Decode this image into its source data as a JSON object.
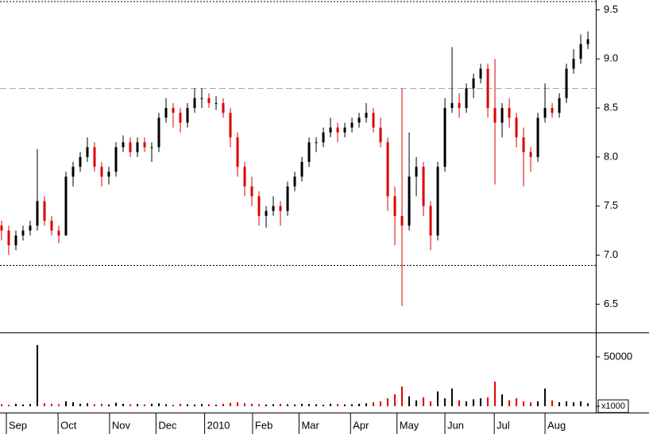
{
  "chart_data": {
    "type": "candlestick",
    "up_color": "#000000",
    "down_color": "#dd0000",
    "ohlc": [
      [
        7.3,
        7.35,
        7.15,
        7.25
      ],
      [
        7.25,
        7.3,
        7.0,
        7.1
      ],
      [
        7.1,
        7.25,
        7.05,
        7.2
      ],
      [
        7.2,
        7.3,
        7.15,
        7.25
      ],
      [
        7.25,
        7.35,
        7.2,
        7.3
      ],
      [
        7.3,
        8.08,
        7.25,
        7.55
      ],
      [
        7.55,
        7.6,
        7.3,
        7.35
      ],
      [
        7.35,
        7.4,
        7.2,
        7.25
      ],
      [
        7.25,
        7.3,
        7.12,
        7.2
      ],
      [
        7.2,
        7.85,
        7.2,
        7.8
      ],
      [
        7.8,
        7.95,
        7.7,
        7.9
      ],
      [
        7.9,
        8.05,
        7.85,
        8.0
      ],
      [
        8.0,
        8.2,
        7.95,
        8.1
      ],
      [
        8.1,
        8.15,
        7.85,
        7.9
      ],
      [
        7.9,
        7.95,
        7.7,
        7.8
      ],
      [
        7.8,
        7.9,
        7.72,
        7.85
      ],
      [
        7.85,
        8.15,
        7.8,
        8.1
      ],
      [
        8.1,
        8.22,
        8.05,
        8.15
      ],
      [
        8.15,
        8.2,
        8.0,
        8.05
      ],
      [
        8.05,
        8.2,
        8.0,
        8.15
      ],
      [
        8.15,
        8.2,
        8.05,
        8.1
      ],
      [
        8.1,
        8.15,
        7.95,
        8.1
      ],
      [
        8.1,
        8.45,
        8.05,
        8.4
      ],
      [
        8.4,
        8.6,
        8.35,
        8.5
      ],
      [
        8.5,
        8.55,
        8.3,
        8.45
      ],
      [
        8.45,
        8.5,
        8.25,
        8.35
      ],
      [
        8.35,
        8.55,
        8.3,
        8.5
      ],
      [
        8.5,
        8.7,
        8.45,
        8.6
      ],
      [
        8.6,
        8.7,
        8.5,
        8.6
      ],
      [
        8.6,
        8.65,
        8.5,
        8.55
      ],
      [
        8.55,
        8.62,
        8.48,
        8.55
      ],
      [
        8.55,
        8.6,
        8.4,
        8.45
      ],
      [
        8.45,
        8.5,
        8.1,
        8.2
      ],
      [
        8.2,
        8.25,
        7.8,
        7.9
      ],
      [
        7.9,
        7.95,
        7.6,
        7.7
      ],
      [
        7.7,
        7.8,
        7.5,
        7.6
      ],
      [
        7.6,
        7.65,
        7.3,
        7.4
      ],
      [
        7.4,
        7.5,
        7.28,
        7.45
      ],
      [
        7.45,
        7.6,
        7.4,
        7.5
      ],
      [
        7.5,
        7.55,
        7.3,
        7.45
      ],
      [
        7.45,
        7.75,
        7.4,
        7.7
      ],
      [
        7.7,
        7.85,
        7.65,
        7.8
      ],
      [
        7.8,
        8.0,
        7.75,
        7.95
      ],
      [
        7.95,
        8.2,
        7.9,
        8.15
      ],
      [
        8.15,
        8.2,
        8.05,
        8.15
      ],
      [
        8.15,
        8.3,
        8.1,
        8.25
      ],
      [
        8.25,
        8.4,
        8.2,
        8.3
      ],
      [
        8.3,
        8.35,
        8.15,
        8.25
      ],
      [
        8.25,
        8.35,
        8.2,
        8.3
      ],
      [
        8.3,
        8.4,
        8.25,
        8.35
      ],
      [
        8.35,
        8.45,
        8.3,
        8.4
      ],
      [
        8.4,
        8.55,
        8.35,
        8.45
      ],
      [
        8.45,
        8.5,
        8.25,
        8.3
      ],
      [
        8.3,
        8.4,
        8.1,
        8.15
      ],
      [
        8.15,
        8.2,
        7.45,
        7.6
      ],
      [
        7.6,
        7.7,
        7.1,
        7.4
      ],
      [
        7.4,
        8.7,
        6.48,
        7.3
      ],
      [
        7.3,
        8.25,
        7.25,
        7.8
      ],
      [
        7.8,
        8.0,
        7.6,
        7.9
      ],
      [
        7.9,
        7.95,
        7.4,
        7.5
      ],
      [
        7.5,
        7.55,
        7.05,
        7.2
      ],
      [
        7.2,
        7.95,
        7.15,
        7.9
      ],
      [
        7.9,
        8.6,
        7.85,
        8.5
      ],
      [
        8.5,
        9.12,
        8.45,
        8.55
      ],
      [
        8.55,
        8.65,
        8.4,
        8.5
      ],
      [
        8.5,
        8.75,
        8.45,
        8.7
      ],
      [
        8.7,
        8.85,
        8.6,
        8.8
      ],
      [
        8.8,
        8.95,
        8.75,
        8.9
      ],
      [
        8.9,
        8.95,
        8.4,
        8.5
      ],
      [
        8.5,
        9.0,
        7.72,
        8.35
      ],
      [
        8.35,
        8.55,
        8.2,
        8.5
      ],
      [
        8.5,
        8.6,
        8.3,
        8.4
      ],
      [
        8.4,
        8.45,
        8.1,
        8.2
      ],
      [
        8.2,
        8.3,
        7.7,
        8.05
      ],
      [
        8.05,
        8.1,
        7.85,
        8.0
      ],
      [
        8.0,
        8.45,
        7.95,
        8.4
      ],
      [
        8.4,
        8.75,
        8.35,
        8.5
      ],
      [
        8.5,
        8.55,
        8.4,
        8.45
      ],
      [
        8.45,
        8.65,
        8.4,
        8.6
      ],
      [
        8.6,
        8.95,
        8.55,
        8.9
      ],
      [
        8.9,
        9.1,
        8.85,
        9.0
      ],
      [
        9.0,
        9.25,
        8.95,
        9.15
      ],
      [
        9.15,
        9.28,
        9.1,
        9.2
      ]
    ],
    "volume": [
      2000,
      1500,
      2500,
      1800,
      2200,
      62000,
      3000,
      2500,
      2000,
      5000,
      4000,
      2500,
      3000,
      2000,
      2500,
      1800,
      3500,
      2500,
      2000,
      2200,
      1800,
      2500,
      3000,
      2000,
      1500,
      2500,
      2000,
      1800,
      2200,
      2000,
      1500,
      2500,
      3500,
      4000,
      3000,
      2500,
      2000,
      1800,
      2000,
      2500,
      2000,
      1800,
      2500,
      2200,
      2000,
      1500,
      2500,
      2200,
      1800,
      2000,
      2500,
      3000,
      4000,
      5000,
      8000,
      12000,
      20000,
      10000,
      6000,
      9000,
      5000,
      15000,
      8000,
      18000,
      6000,
      5000,
      7000,
      8000,
      9000,
      25000,
      12000,
      6000,
      8000,
      5000,
      4000,
      5000,
      18000,
      6000,
      4000,
      5000,
      4000,
      5000,
      3000
    ],
    "xlim": [
      -0.22,
      83.1
    ],
    "xticks": [
      {
        "value": 0.67,
        "label": "Sep"
      },
      {
        "value": 7.9,
        "label": "Oct"
      },
      {
        "value": 15.1,
        "label": "Nov"
      },
      {
        "value": 21.6,
        "label": "Dec"
      },
      {
        "value": 28.4,
        "label": "2010"
      },
      {
        "value": 35.1,
        "label": "Feb"
      },
      {
        "value": 41.6,
        "label": "Mar"
      },
      {
        "value": 48.8,
        "label": "Apr"
      },
      {
        "value": 55.3,
        "label": "May"
      },
      {
        "value": 62,
        "label": "Jun"
      },
      {
        "value": 68.9,
        "label": "Jul"
      },
      {
        "value": 76,
        "label": "Aug"
      }
    ],
    "ylim": [
      6.22,
      9.6
    ],
    "yticks": [
      6.5,
      {
        "value": 7.0,
        "label": "7.0"
      },
      7.5,
      {
        "value": 8.0,
        "label": "8.0"
      },
      8.5,
      {
        "value": 9.0,
        "label": "9.0"
      },
      9.5
    ],
    "volume_ylim": [
      0,
      74000
    ],
    "volume_yticks": [
      0,
      50000
    ],
    "volume_unit_label": "x1000",
    "reference_lines": [
      {
        "value": 8.7,
        "style": "dashed",
        "color": "#aaaaaa"
      },
      {
        "value": 6.9,
        "style": "dotted",
        "color": "#000000"
      }
    ]
  }
}
